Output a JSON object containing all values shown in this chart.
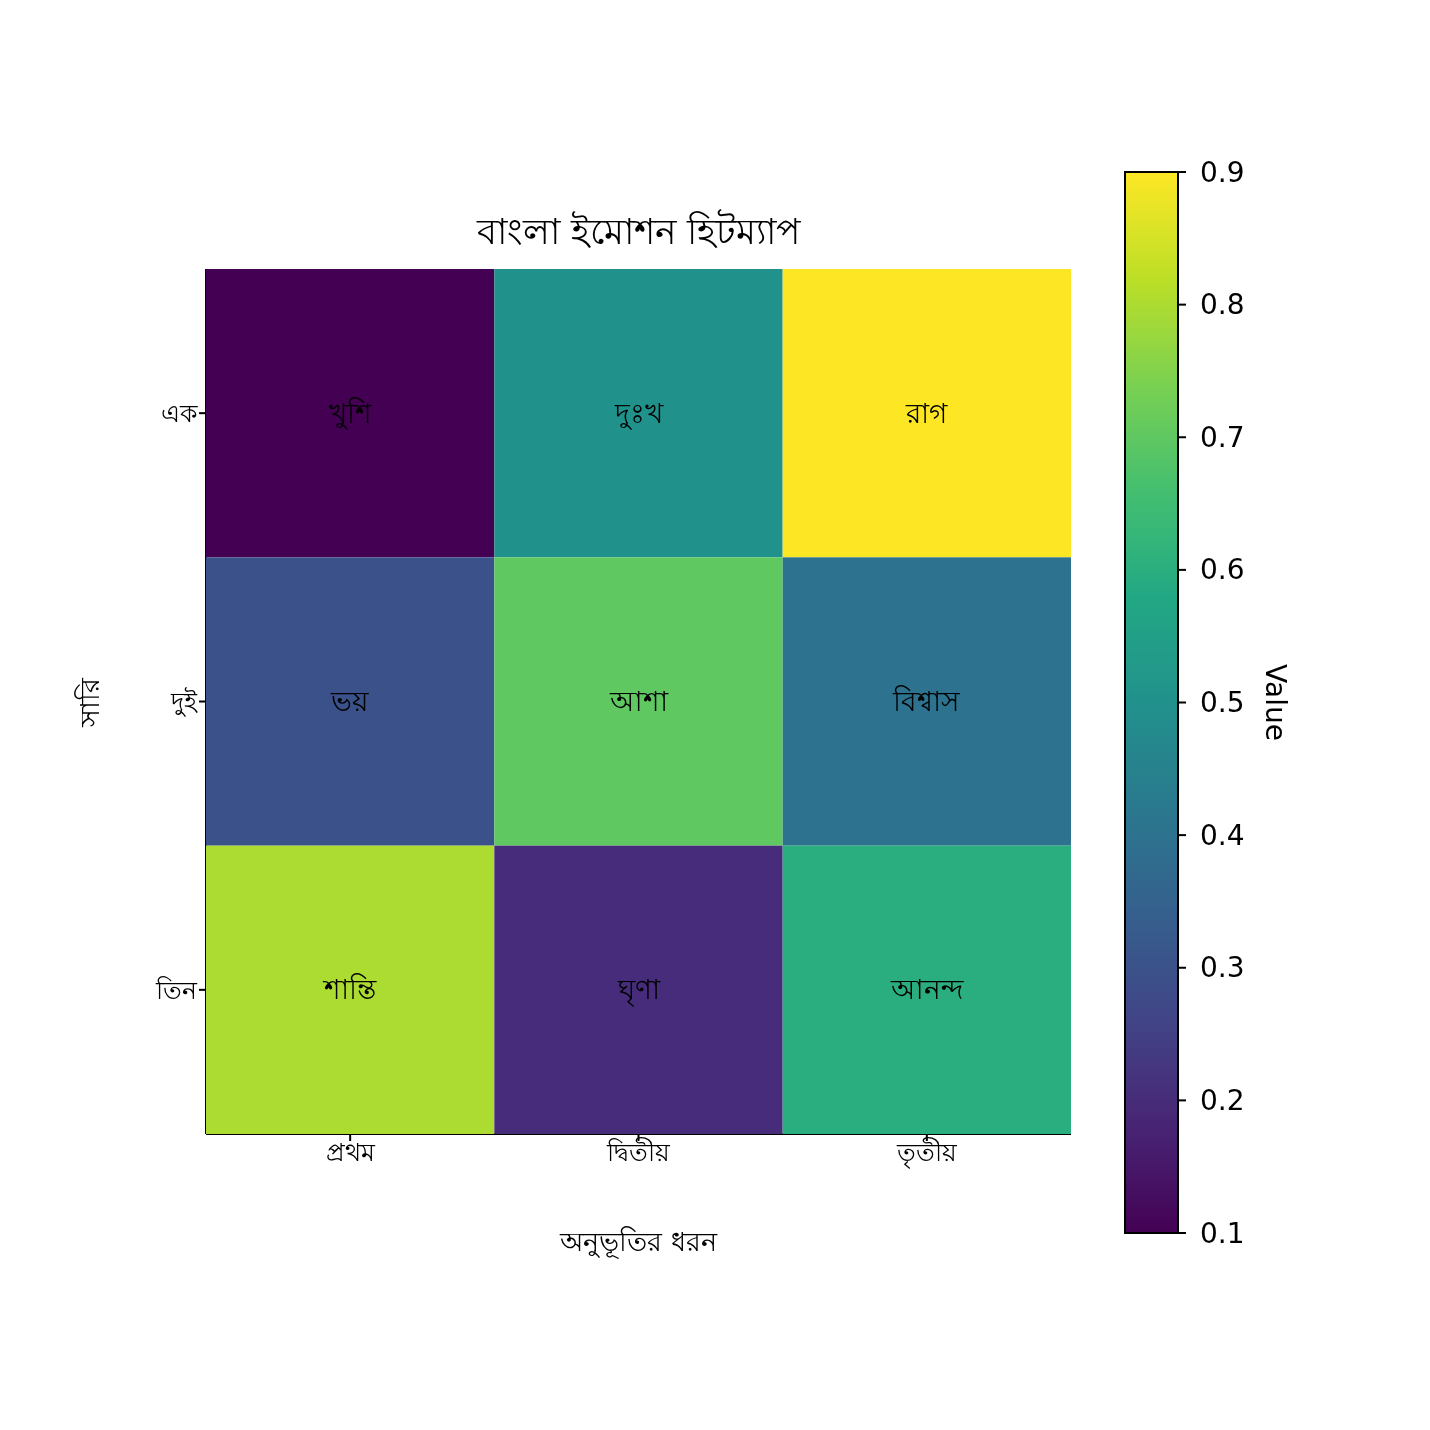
{
  "chart_data": {
    "type": "heatmap",
    "title": "বাংলা ইমোশন হিটম্যাপ",
    "xlabel": "অনুভূতির ধরন",
    "ylabel": "সারি",
    "clabel": "Value",
    "categories": [
      "প্রথম",
      "দ্বিতীয়",
      "তৃতীয়"
    ],
    "y_categories": [
      "এক",
      "দুই",
      "তিন"
    ],
    "cells": [
      [
        0.1,
        0.5,
        0.9
      ],
      [
        0.3,
        0.7,
        0.4
      ],
      [
        0.8,
        0.2,
        0.6
      ]
    ],
    "cell_labels": [
      [
        "খুশি",
        "দুঃখ",
        "রাগ"
      ],
      [
        "ভয়",
        "আশা",
        "বিশ্বাস"
      ],
      [
        "শান্তি",
        "ঘৃণা",
        "আনন্দ"
      ]
    ],
    "clim": [
      0.1,
      0.9
    ],
    "cticks": [
      0.1,
      0.2,
      0.3,
      0.4,
      0.5,
      0.6,
      0.7,
      0.8,
      0.9
    ]
  }
}
